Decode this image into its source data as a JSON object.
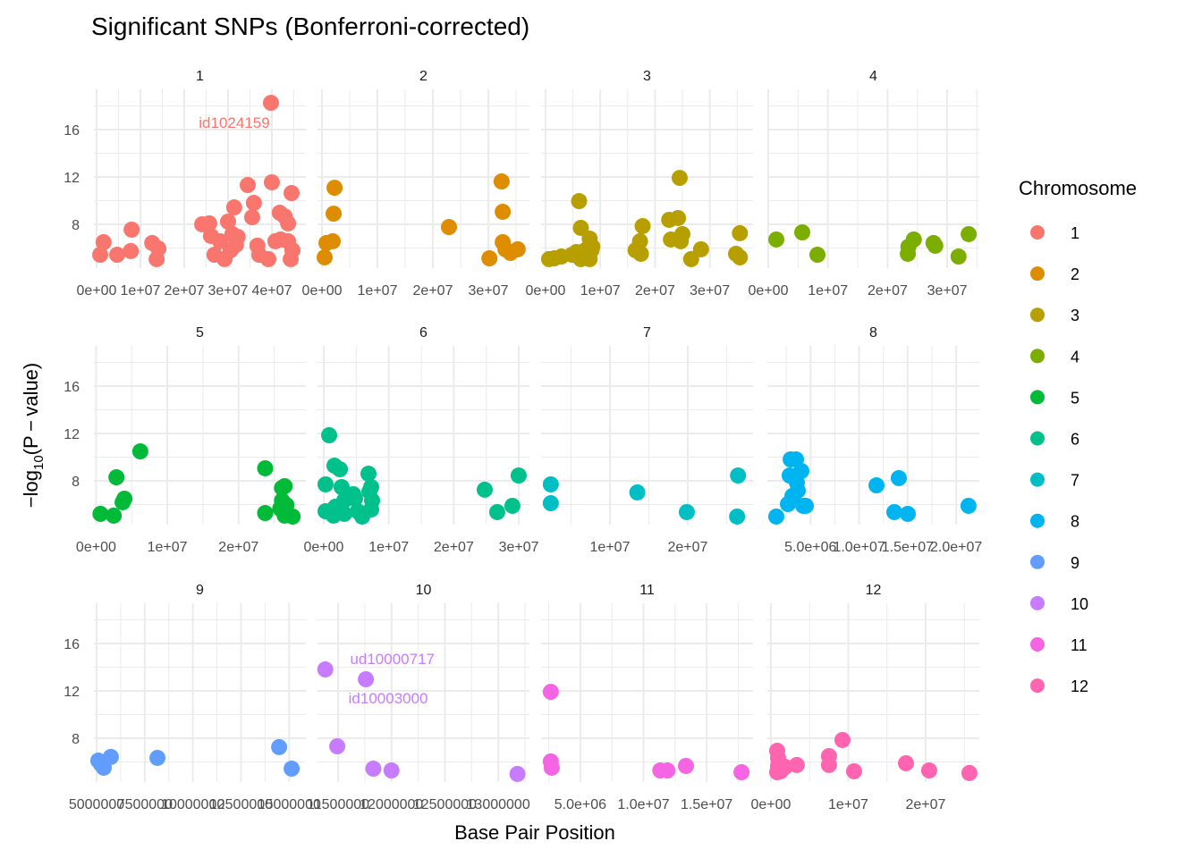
{
  "chart_data": {
    "type": "scatter",
    "title": "Significant SNPs (Bonferroni-corrected)",
    "xlabel": "Base Pair Position",
    "ylabel": {
      "prefix": "−log",
      "sub": "10",
      "suffix": "(P − value)"
    },
    "ylim": [
      4.3,
      19.4
    ],
    "yticks": [
      8,
      12,
      16
    ],
    "grid": true,
    "facet_by": "Chromosome",
    "legend": {
      "title": "Chromosome",
      "placement": "right"
    },
    "colors": [
      "#F8766D",
      "#DE8C00",
      "#B79F00",
      "#7CAE00",
      "#00BA38",
      "#00C08B",
      "#00BFC4",
      "#00B4F0",
      "#619CFF",
      "#C77CFF",
      "#F564E3",
      "#FF64B0"
    ],
    "panels": [
      {
        "label": "1",
        "xlim": [
          -610000,
          47760000
        ],
        "xticks": [
          0,
          10000000,
          20000000,
          30000000,
          40000000
        ],
        "xtick_labels": [
          "0e+00",
          "1e+07",
          "2e+07",
          "3e+07",
          "4e+07"
        ],
        "points": [
          [
            820000,
            5.43
          ],
          [
            1600000,
            6.49
          ],
          [
            4700000,
            5.43
          ],
          [
            7800000,
            5.74
          ],
          [
            8000000,
            7.55
          ],
          [
            12700000,
            6.42
          ],
          [
            13700000,
            5.06
          ],
          [
            14100000,
            5.96
          ],
          [
            24100000,
            8.0
          ],
          [
            25700000,
            8.08
          ],
          [
            26100000,
            7.02
          ],
          [
            26900000,
            5.43
          ],
          [
            28200000,
            6.57
          ],
          [
            29200000,
            5.06
          ],
          [
            30000000,
            8.23
          ],
          [
            30600000,
            5.81
          ],
          [
            31400000,
            9.43
          ],
          [
            31000000,
            7.17
          ],
          [
            32200000,
            6.94
          ],
          [
            31800000,
            6.26
          ],
          [
            34500000,
            11.32
          ],
          [
            35500000,
            8.6
          ],
          [
            35900000,
            9.81
          ],
          [
            36700000,
            6.2
          ],
          [
            37100000,
            5.43
          ],
          [
            39200000,
            5.06
          ],
          [
            40000000,
            11.55
          ],
          [
            39800000,
            18.26
          ],
          [
            40800000,
            6.57
          ],
          [
            41800000,
            8.98
          ],
          [
            42000000,
            6.72
          ],
          [
            42900000,
            8.68
          ],
          [
            43700000,
            8.08
          ],
          [
            43700000,
            6.57
          ],
          [
            44500000,
            10.64
          ],
          [
            44300000,
            5.06
          ],
          [
            44700000,
            5.81
          ]
        ]
      },
      {
        "label": "2",
        "xlim": [
          -810000,
          37420000
        ],
        "xticks": [
          0,
          10000000,
          20000000,
          30000000
        ],
        "xtick_labels": [
          "0e+00",
          "1e+07",
          "2e+07",
          "3e+07"
        ],
        "points": [
          [
            480000,
            5.21
          ],
          [
            810000,
            6.42
          ],
          [
            1940000,
            6.57
          ],
          [
            2100000,
            8.9
          ],
          [
            2260000,
            11.09
          ],
          [
            22900000,
            7.77
          ],
          [
            30200000,
            5.13
          ],
          [
            32400000,
            11.62
          ],
          [
            32600000,
            9.06
          ],
          [
            32600000,
            6.49
          ],
          [
            33100000,
            5.89
          ],
          [
            34000000,
            5.58
          ],
          [
            35300000,
            5.89
          ]
        ]
      },
      {
        "label": "3",
        "xlim": [
          -810000,
          37900000
        ],
        "xticks": [
          0,
          10000000,
          20000000,
          30000000
        ],
        "xtick_labels": [
          "0e+00",
          "1e+07",
          "2e+07",
          "3e+07"
        ],
        "points": [
          [
            650000,
            5.06
          ],
          [
            1610000,
            5.13
          ],
          [
            2900000,
            5.28
          ],
          [
            4840000,
            5.43
          ],
          [
            5650000,
            5.66
          ],
          [
            6130000,
            9.96
          ],
          [
            6450000,
            7.7
          ],
          [
            6450000,
            5.06
          ],
          [
            7260000,
            5.81
          ],
          [
            8060000,
            6.79
          ],
          [
            8390000,
            5.81
          ],
          [
            8550000,
            6.11
          ],
          [
            8060000,
            5.06
          ],
          [
            17740000,
            7.85
          ],
          [
            17260000,
            6.57
          ],
          [
            17420000,
            5.51
          ],
          [
            16450000,
            5.81
          ],
          [
            22580000,
            8.38
          ],
          [
            22900000,
            6.72
          ],
          [
            24200000,
            8.53
          ],
          [
            24500000,
            11.92
          ],
          [
            24700000,
            6.57
          ],
          [
            25000000,
            7.17
          ],
          [
            26600000,
            5.06
          ],
          [
            28400000,
            5.89
          ],
          [
            34800000,
            5.51
          ],
          [
            35500000,
            7.25
          ],
          [
            35500000,
            5.21
          ]
        ]
      },
      {
        "label": "4",
        "xlim": [
          -150000,
          35380000
        ],
        "xticks": [
          0,
          10000000,
          20000000,
          30000000
        ],
        "xtick_labels": [
          "0e+00",
          "1e+07",
          "2e+07",
          "3e+07"
        ],
        "points": [
          [
            1350000,
            6.72
          ],
          [
            5700000,
            7.32
          ],
          [
            8250000,
            5.43
          ],
          [
            23400000,
            5.51
          ],
          [
            23500000,
            6.11
          ],
          [
            24400000,
            6.72
          ],
          [
            27700000,
            6.42
          ],
          [
            28000000,
            6.19
          ],
          [
            31900000,
            5.28
          ],
          [
            33600000,
            7.17
          ]
        ]
      },
      {
        "label": "5",
        "xlim": [
          -300000,
          29440000
        ],
        "xticks": [
          0,
          10000000,
          20000000
        ],
        "xtick_labels": [
          "0e+00",
          "1e+07",
          "2e+07"
        ],
        "points": [
          [
            620000,
            5.21
          ],
          [
            2480000,
            5.06
          ],
          [
            2860000,
            8.3
          ],
          [
            3730000,
            6.19
          ],
          [
            3980000,
            6.49
          ],
          [
            6210000,
            10.49
          ],
          [
            23730000,
            9.06
          ],
          [
            23730000,
            5.28
          ],
          [
            25840000,
            5.66
          ],
          [
            26090000,
            7.4
          ],
          [
            26460000,
            7.55
          ],
          [
            26090000,
            6.34
          ],
          [
            26710000,
            5.96
          ],
          [
            26460000,
            5.06
          ],
          [
            27580000,
            4.98
          ]
        ]
      },
      {
        "label": "6",
        "xlim": [
          -960000,
          31640000
        ],
        "xticks": [
          0,
          10000000,
          20000000,
          30000000
        ],
        "xtick_labels": [
          "0e+00",
          "1e+07",
          "2e+07",
          "3e+07"
        ],
        "points": [
          [
            280000,
            7.7
          ],
          [
            280000,
            5.43
          ],
          [
            830000,
            11.85
          ],
          [
            1510000,
            5.06
          ],
          [
            1650000,
            9.28
          ],
          [
            1790000,
            5.81
          ],
          [
            2480000,
            8.98
          ],
          [
            2750000,
            7.47
          ],
          [
            3160000,
            6.34
          ],
          [
            3160000,
            5.21
          ],
          [
            4540000,
            6.87
          ],
          [
            4810000,
            6.49
          ],
          [
            5230000,
            5.43
          ],
          [
            5910000,
            4.98
          ],
          [
            6880000,
            8.6
          ],
          [
            7020000,
            7.09
          ],
          [
            7290000,
            7.47
          ],
          [
            7290000,
            5.58
          ],
          [
            7430000,
            6.34
          ],
          [
            24760000,
            7.25
          ],
          [
            26680000,
            5.36
          ],
          [
            29020000,
            5.89
          ],
          [
            29980000,
            8.45
          ]
        ]
      },
      {
        "label": "7",
        "xlim": [
          1140000,
          28410000
        ],
        "xticks": [
          10000000,
          20000000
        ],
        "xtick_labels": [
          "1e+07",
          "2e+07"
        ],
        "points": [
          [
            2390000,
            7.7
          ],
          [
            2390000,
            6.11
          ],
          [
            13520000,
            7.02
          ],
          [
            19890000,
            5.36
          ],
          [
            26480000,
            8.45
          ],
          [
            26360000,
            4.98
          ]
        ]
      },
      {
        "label": "8",
        "xlim": [
          550000,
          22380000
        ],
        "xticks": [
          5000000,
          10000000,
          15000000,
          20000000
        ],
        "xtick_labels": [
          "5.0e+06",
          "1.0e+07",
          "1.5e+07",
          "2.0e+07"
        ],
        "points": [
          [
            1470000,
            4.98
          ],
          [
            2670000,
            6.04
          ],
          [
            2850000,
            8.45
          ],
          [
            2950000,
            9.81
          ],
          [
            3500000,
            9.81
          ],
          [
            3130000,
            6.72
          ],
          [
            3680000,
            7.17
          ],
          [
            4050000,
            8.83
          ],
          [
            4240000,
            5.89
          ],
          [
            4510000,
            5.89
          ],
          [
            3590000,
            7.85
          ],
          [
            11790000,
            7.62
          ],
          [
            14090000,
            8.23
          ],
          [
            13630000,
            5.36
          ],
          [
            15010000,
            5.21
          ],
          [
            21270000,
            5.89
          ]
        ]
      },
      {
        "label": "9",
        "xlim": [
          4860000,
          15870000
        ],
        "xticks": [
          5000000,
          7500000,
          10000000,
          12500000,
          15000000
        ],
        "xtick_labels": [
          "5000000",
          "7500000",
          "10000000",
          "12500000",
          "15000000"
        ],
        "points": [
          [
            5090000,
            6.11
          ],
          [
            5230000,
            5.81
          ],
          [
            5370000,
            5.51
          ],
          [
            5740000,
            6.42
          ],
          [
            8160000,
            6.34
          ],
          [
            14480000,
            7.25
          ],
          [
            15130000,
            5.43
          ]
        ]
      },
      {
        "label": "10",
        "xlim": [
          11307000,
          13292000
        ],
        "xticks": [
          11500000,
          12000000,
          12500000,
          13000000
        ],
        "xtick_labels": [
          "11500000",
          "12000000",
          "12500000",
          "13000000"
        ],
        "points": [
          [
            11380000,
            13.81
          ],
          [
            11760000,
            12.98
          ],
          [
            11492000,
            7.32
          ],
          [
            11830000,
            5.43
          ],
          [
            12000000,
            5.28
          ],
          [
            13180000,
            4.98
          ]
        ]
      },
      {
        "label": "11",
        "xlim": [
          1890000,
          18670000
        ],
        "xticks": [
          5000000,
          10000000,
          15000000
        ],
        "xtick_labels": [
          "5.0e+06",
          "1.0e+07",
          "1.5e+07"
        ],
        "points": [
          [
            2660000,
            11.92
          ],
          [
            2660000,
            6.04
          ],
          [
            2730000,
            5.51
          ],
          [
            11330000,
            5.28
          ],
          [
            11890000,
            5.28
          ],
          [
            13360000,
            5.66
          ],
          [
            17760000,
            5.13
          ]
        ]
      },
      {
        "label": "12",
        "xlim": [
          -460000,
          26940000
        ],
        "xticks": [
          0,
          10000000,
          20000000
        ],
        "xtick_labels": [
          "0e+00",
          "1e+07",
          "2e+07"
        ],
        "points": [
          [
            810000,
            6.94
          ],
          [
            920000,
            6.34
          ],
          [
            920000,
            5.66
          ],
          [
            810000,
            5.13
          ],
          [
            1270000,
            5.21
          ],
          [
            1850000,
            5.58
          ],
          [
            3350000,
            5.74
          ],
          [
            7510000,
            6.49
          ],
          [
            7510000,
            5.74
          ],
          [
            9250000,
            7.85
          ],
          [
            10750000,
            5.21
          ],
          [
            17460000,
            5.89
          ],
          [
            20460000,
            5.28
          ],
          [
            25660000,
            5.06
          ]
        ]
      }
    ],
    "annotations": [
      {
        "text": "id1024159",
        "chromosome": "1",
        "x": 39800000,
        "y": 18.26
      },
      {
        "text": "ud10000717",
        "chromosome": "10",
        "x": 11380000,
        "y": 13.81
      },
      {
        "text": "id10003000",
        "chromosome": "10",
        "x": 11760000,
        "y": 12.98
      }
    ]
  }
}
